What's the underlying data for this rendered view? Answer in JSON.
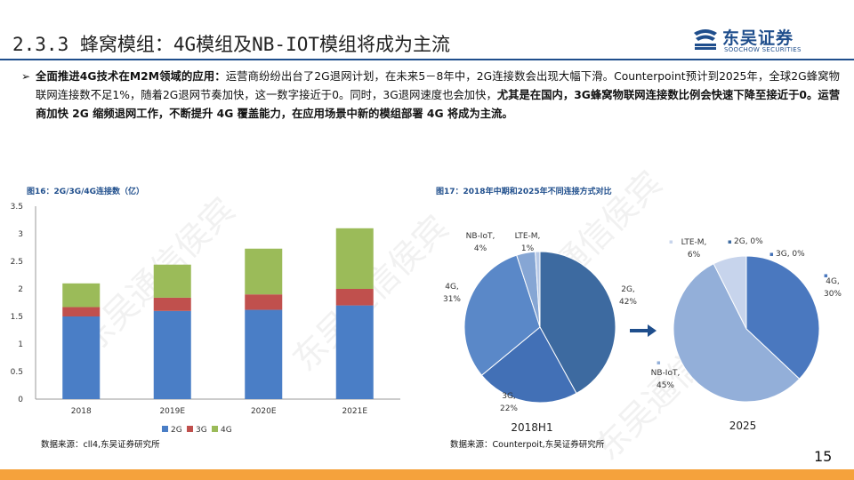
{
  "header": {
    "title": "2.3.3 蜂窝模组：4G模组及NB-IOT模组将成为主流",
    "logo_name": "东吴证券",
    "logo_sub": "SOOCHOW SECURITIES",
    "brand_color": "#1f4e8c"
  },
  "bullet": {
    "marker": "➢",
    "lead": "全面推进4G技术在M2M领域的应用：",
    "text1": "运营商纷纷出台了2G退网计划，在未来5－8年中，2G连接数会出现大幅下滑。Counterpoint预计到2025年，全球2G蜂窝物联网连接数不足1%，随着2G退网节奏加快，这一数字接近于0。同时，3G退网速度也会加快，",
    "bold2": "尤其是在国内，3G蜂窝物联网连接数比例会快速下降至接近于0。运营商加快 2G 缩频退网工作，不断提升 4G 覆盖能力，在应用场景中新的模组部署 4G 将成为主流。"
  },
  "bar_section": {
    "title": "图16：2G/3G/4G连接数（亿）",
    "source": "数据来源：cll4,东吴证券研究所"
  },
  "pie_section": {
    "title": "图17：2018年中期和2025年不同连接方式对比",
    "source": "数据来源：Counterpoit,东吴证券研究所"
  },
  "chart_data": [
    {
      "type": "bar",
      "stacked": true,
      "categories": [
        "2018",
        "2019E",
        "2020E",
        "2021E"
      ],
      "series": [
        {
          "name": "2G",
          "values": [
            1.5,
            1.6,
            1.62,
            1.7
          ],
          "color": "#4a7ec6"
        },
        {
          "name": "3G",
          "values": [
            0.17,
            0.24,
            0.28,
            0.3
          ],
          "color": "#c0504d"
        },
        {
          "name": "4G",
          "values": [
            0.43,
            0.6,
            0.83,
            1.1
          ],
          "color": "#9bbb59"
        }
      ],
      "ylim": [
        0,
        3.5
      ],
      "yticks": [
        "0",
        "0.5",
        "1",
        "1.5",
        "2",
        "2.5",
        "3",
        "3.5"
      ],
      "grid": false,
      "legend": "bottom"
    },
    {
      "type": "pie",
      "title": "2018H1",
      "slices": [
        {
          "name": "2G",
          "value": 42,
          "label_name": "2G,",
          "label_pct": "42%",
          "color": "#3d6aa0"
        },
        {
          "name": "3G",
          "value": 22,
          "label_name": "3G,",
          "label_pct": "22%",
          "color": "#4270b6"
        },
        {
          "name": "4G",
          "value": 31,
          "label_name": "4G,",
          "label_pct": "31%",
          "color": "#5a88c8"
        },
        {
          "name": "NB-IoT",
          "value": 4,
          "label_name": "NB-IoT,",
          "label_pct": "4%",
          "color": "#86a6d4"
        },
        {
          "name": "LTE-M",
          "value": 1,
          "label_name": "LTE-M,",
          "label_pct": "1%",
          "color": "#b6c8e6"
        }
      ]
    },
    {
      "type": "pie",
      "title": "2025",
      "slices": [
        {
          "name": "2G",
          "value": 0,
          "label": "2G, 0%",
          "color": "#3d6aa0"
        },
        {
          "name": "3G",
          "value": 0,
          "label": "3G, 0%",
          "color": "#4270b6"
        },
        {
          "name": "4G",
          "value": 30,
          "label_name": "4G,",
          "label_pct": "30%",
          "color": "#4a78bf"
        },
        {
          "name": "NB-IoT",
          "value": 45,
          "label_name": "NB-IoT,",
          "label_pct": "45%",
          "color": "#93afd9"
        },
        {
          "name": "LTE-M",
          "value": 6,
          "label_name": "LTE-M,",
          "label_pct": "6%",
          "color": "#c7d4ec"
        }
      ]
    }
  ],
  "arrow_color": "#1f4e8c",
  "page_number": "15",
  "footer_color": "#f5a23c",
  "watermark": "东吴通信侯宾"
}
